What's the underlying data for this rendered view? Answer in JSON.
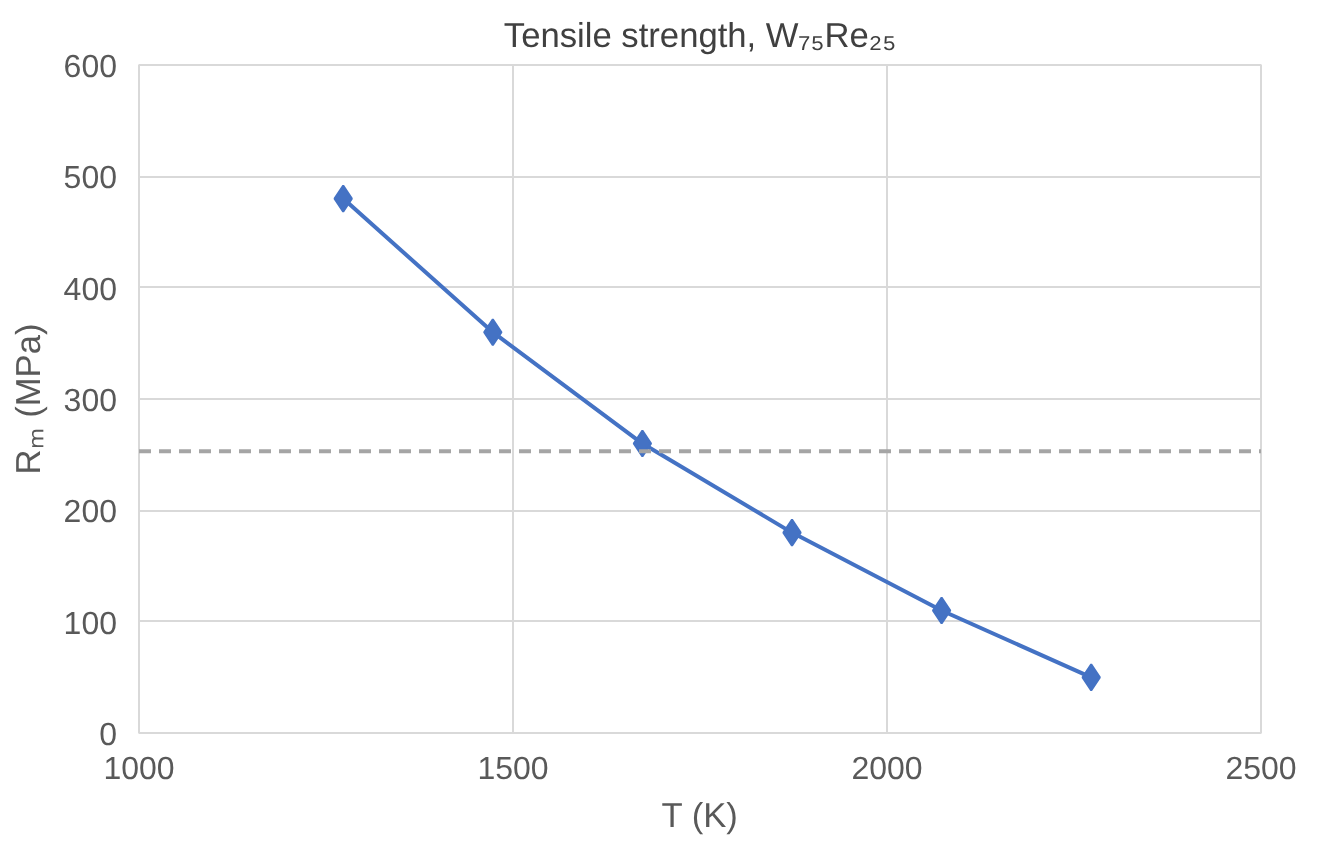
{
  "chart_data": {
    "type": "line",
    "title": "Tensile strength, W₇₅Re₂₅",
    "xlabel": "T (K)",
    "ylabel": "Rₘ (MPa)",
    "x": [
      1273,
      1473,
      1673,
      1873,
      2073,
      2273
    ],
    "series": [
      {
        "color": "#4472c4",
        "values": [
          480,
          360,
          260,
          180,
          110,
          50
        ]
      }
    ],
    "xlim": [
      1000,
      2500
    ],
    "xticks": [
      1000,
      1500,
      2000,
      2500
    ],
    "ylim": [
      0,
      600
    ],
    "yticks": [
      0,
      100,
      200,
      300,
      400,
      500,
      600
    ],
    "grid": true,
    "marker": "diamond",
    "line_style": "solid",
    "ref_lines": [
      {
        "axis": "y",
        "value": 253,
        "color": "#a5a5a5",
        "line_style": "dashed"
      }
    ]
  }
}
